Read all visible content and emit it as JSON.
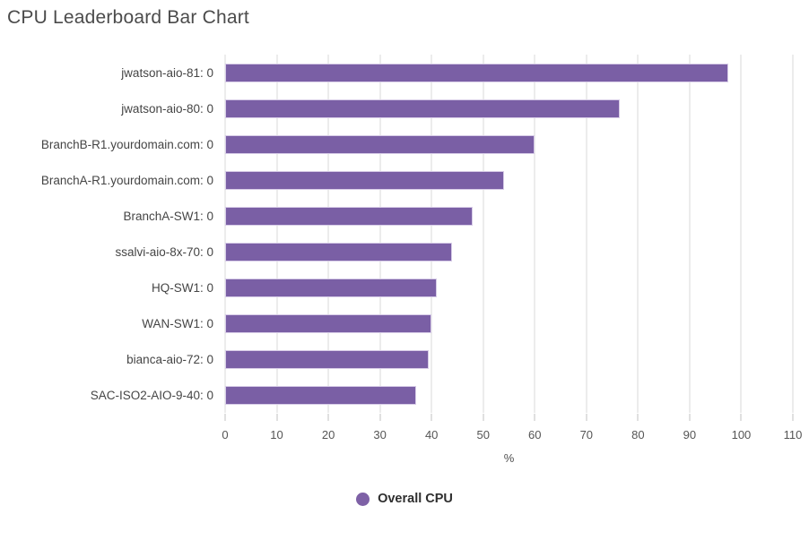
{
  "title": "CPU Leaderboard Bar Chart",
  "chart_data": {
    "type": "bar",
    "orientation": "horizontal",
    "title": "CPU Leaderboard Bar Chart",
    "categories": [
      "jwatson-aio-81: 0",
      "jwatson-aio-80: 0",
      "BranchB-R1.yourdomain.com: 0",
      "BranchA-R1.yourdomain.com: 0",
      "BranchA-SW1: 0",
      "ssalvi-aio-8x-70: 0",
      "HQ-SW1: 0",
      "WAN-SW1: 0",
      "bianca-aio-72: 0",
      "SAC-ISO2-AIO-9-40: 0"
    ],
    "series_name": "Overall CPU",
    "values": [
      97.5,
      76.5,
      60,
      54,
      48,
      44,
      41,
      40,
      39.5,
      37
    ],
    "xlabel": "%",
    "xlim": [
      0,
      110
    ],
    "xticks": [
      0,
      10,
      20,
      30,
      40,
      50,
      60,
      70,
      80,
      90,
      100,
      110
    ],
    "grid": true,
    "legend_position": "bottom",
    "colors": {
      "bar_fill": "#7A5FA5",
      "bar_border": "#D7CCE7",
      "legend_dot": "#7E61A6",
      "gridline": "#ECECEC",
      "tick_mark": "#E0E0E0"
    }
  }
}
